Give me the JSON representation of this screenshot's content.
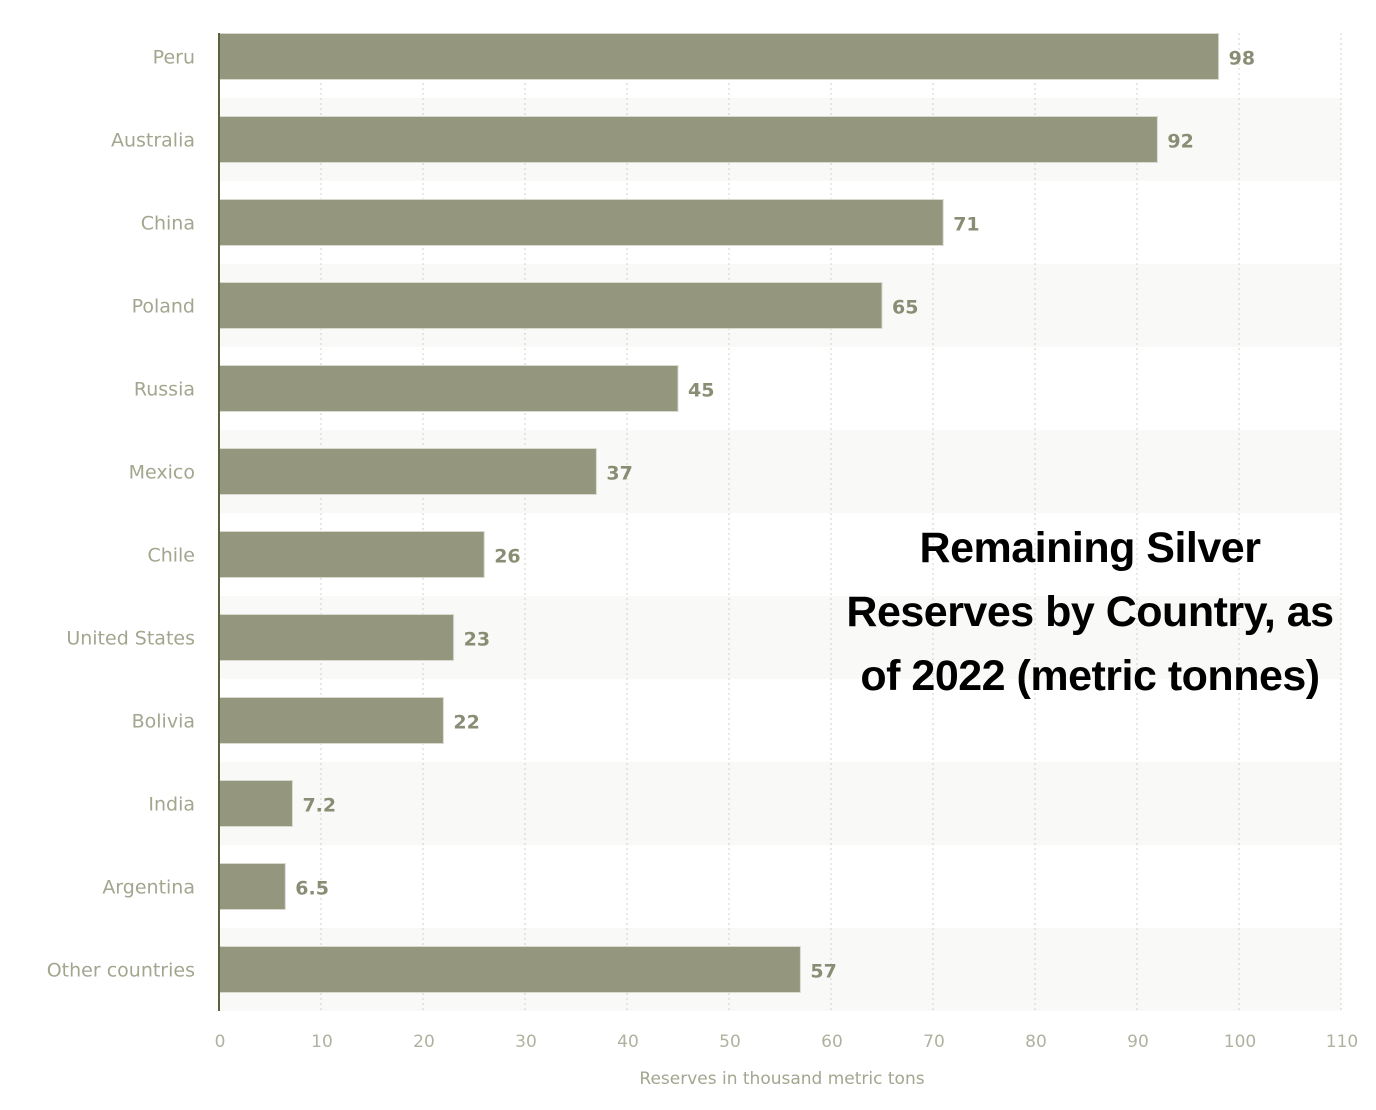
{
  "chart_data": {
    "type": "bar",
    "orientation": "horizontal",
    "title": "Remaining Silver Reserves by Country, as of 2022 (metric tonnes)",
    "xlabel": "Reserves in thousand metric tons",
    "ylabel": "",
    "categories": [
      "Peru",
      "Australia",
      "China",
      "Poland",
      "Russia",
      "Mexico",
      "Chile",
      "United States",
      "Bolivia",
      "India",
      "Argentina",
      "Other countries"
    ],
    "values": [
      98,
      92,
      71,
      65,
      45,
      37,
      26,
      23,
      22,
      7.2,
      6.5,
      57
    ],
    "value_labels": [
      "98",
      "92",
      "71",
      "65",
      "45",
      "37",
      "26",
      "23",
      "22",
      "7.2",
      "6.5",
      "57"
    ],
    "xlim": [
      0,
      110
    ],
    "xticks": [
      "0",
      "10",
      "20",
      "30",
      "40",
      "50",
      "60",
      "70",
      "80",
      "90",
      "100",
      "110"
    ],
    "grid": "vertical dotted",
    "bar_color": "#94977d",
    "legend": "none"
  }
}
